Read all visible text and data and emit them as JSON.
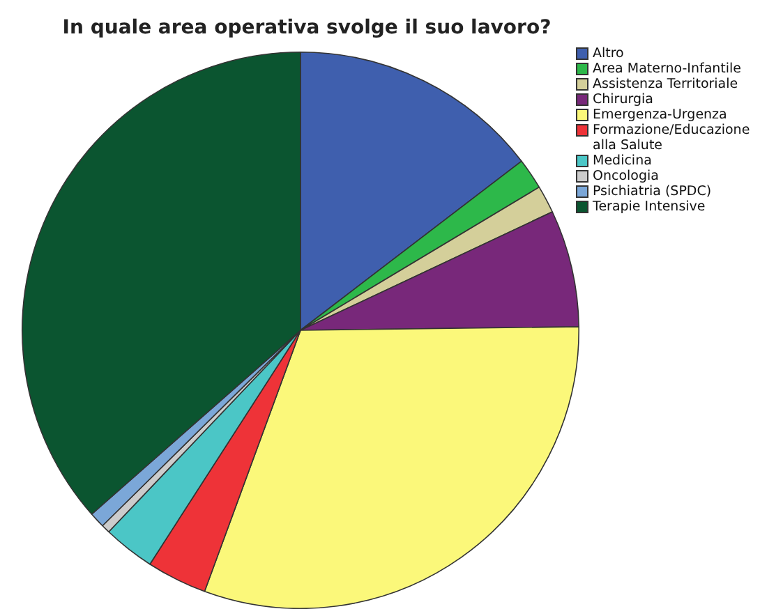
{
  "chart_data": {
    "type": "pie",
    "title": "In quale area operativa svolge il suo lavoro?",
    "categories": [
      "Altro",
      "Area Materno-Infantile",
      "Assistenza Territoriale",
      "Chirurgia",
      "Emergenza-Urgenza",
      "Formazione/Educazione alla Salute",
      "Medicina",
      "Oncologia",
      "Psichiatria (SPDC)",
      "Terapie Intensive"
    ],
    "values": [
      14.6,
      1.8,
      1.6,
      6.8,
      30.8,
      3.5,
      3.0,
      0.5,
      0.9,
      36.5
    ],
    "colors": [
      "#3f5fae",
      "#2db84a",
      "#d4cf9a",
      "#78287a",
      "#fbf87a",
      "#ee3338",
      "#4bc6c6",
      "#cccccc",
      "#7ba7d8",
      "#0b5530"
    ],
    "legend": "top right"
  }
}
